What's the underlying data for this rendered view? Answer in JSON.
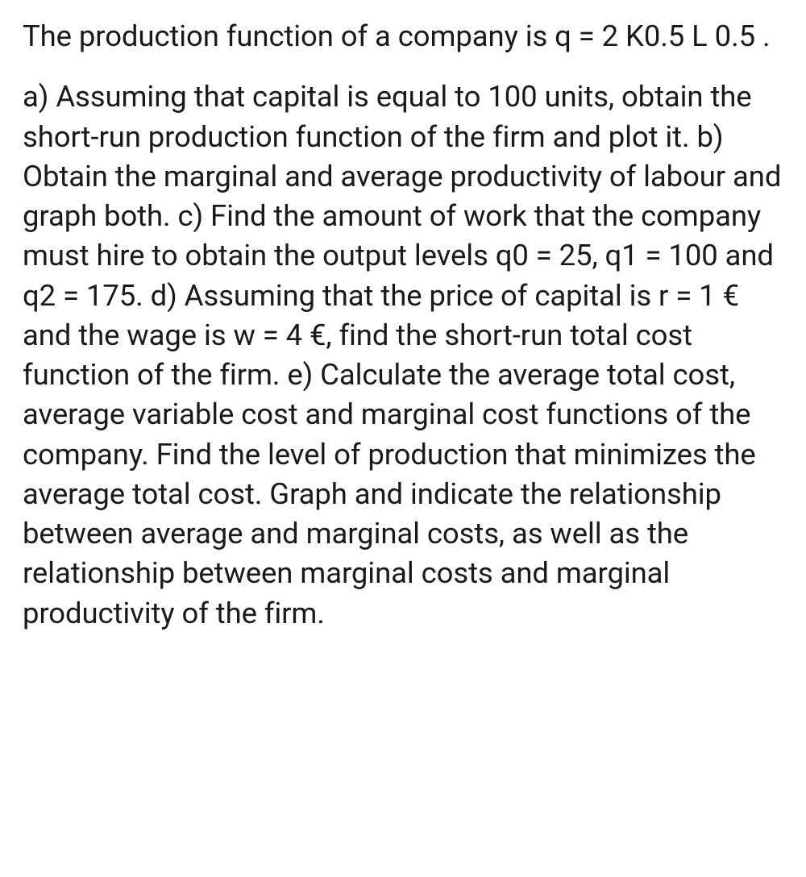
{
  "content": {
    "paragraph1": "The production function of a company is q = 2 K0.5 L 0.5 .",
    "paragraph2": "a) Assuming that capital is equal to 100 units, obtain the short-run production function of the firm and plot it. b) Obtain the marginal and average productivity of labour and graph both. c) Find the amount of work that the company must hire to obtain the output levels q0 = 25, q1 = 100 and q2 = 175. d) Assuming that the price of capital is r = 1 € and the wage is w = 4 €, find the short-run total cost function of the firm. e) Calculate the average total cost, average variable cost and marginal cost functions of the company. Find the level of production that minimizes the average total cost. Graph and indicate the relationship between average and marginal costs, as well as the relationship between marginal costs and marginal productivity of the firm."
  },
  "styling": {
    "background_color": "#ffffff",
    "text_color": "#1a1a1a",
    "font_size": 36.5,
    "line_height": 1.35,
    "font_weight": 400,
    "paragraph_gap": 26
  }
}
